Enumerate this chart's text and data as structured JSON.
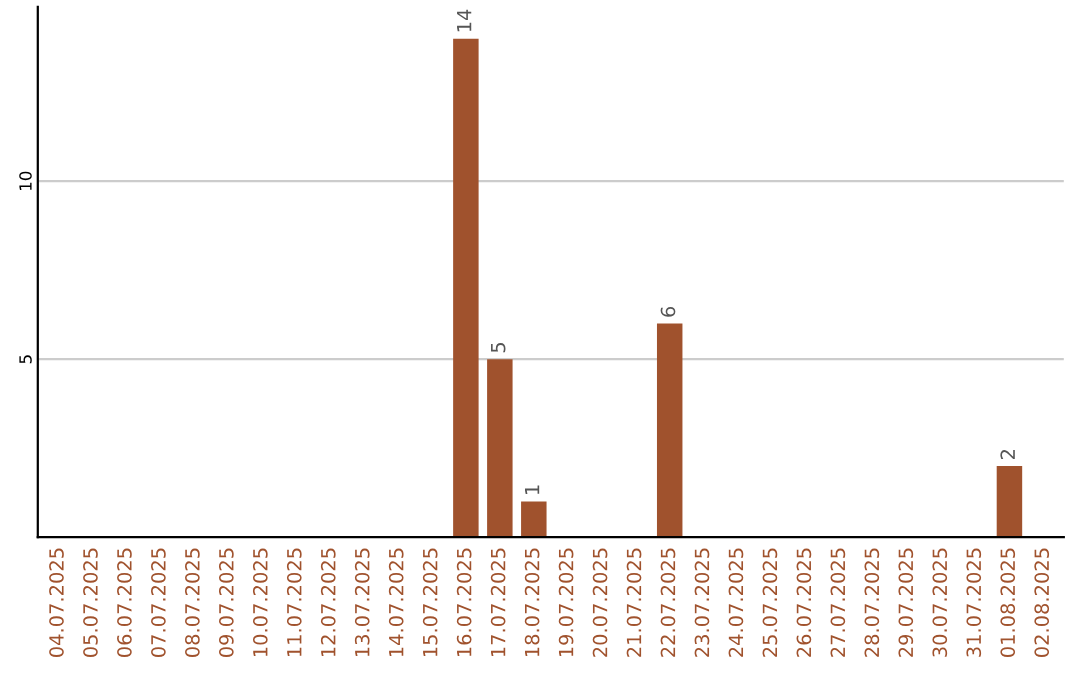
{
  "chart_data": {
    "type": "bar",
    "categories": [
      "04.07.2025",
      "05.07.2025",
      "06.07.2025",
      "07.07.2025",
      "08.07.2025",
      "09.07.2025",
      "10.07.2025",
      "11.07.2025",
      "12.07.2025",
      "13.07.2025",
      "14.07.2025",
      "15.07.2025",
      "16.07.2025",
      "17.07.2025",
      "18.07.2025",
      "19.07.2025",
      "20.07.2025",
      "21.07.2025",
      "22.07.2025",
      "23.07.2025",
      "24.07.2025",
      "25.07.2025",
      "26.07.2025",
      "27.07.2025",
      "28.07.2025",
      "29.07.2025",
      "30.07.2025",
      "31.07.2025",
      "01.08.2025",
      "02.08.2025"
    ],
    "values": [
      0,
      0,
      0,
      0,
      0,
      0,
      0,
      0,
      0,
      0,
      0,
      0,
      14,
      5,
      1,
      0,
      0,
      0,
      6,
      0,
      0,
      0,
      0,
      0,
      0,
      0,
      0,
      0,
      2,
      0
    ],
    "value_labels": [
      null,
      null,
      null,
      null,
      null,
      null,
      null,
      null,
      null,
      null,
      null,
      null,
      "14",
      "5",
      "1",
      null,
      null,
      null,
      "6",
      null,
      null,
      null,
      null,
      null,
      null,
      null,
      null,
      null,
      "2",
      null
    ],
    "color": "#a0522d",
    "ylim": [
      0,
      14.9
    ],
    "yticks": [
      5,
      10
    ],
    "grid": "y",
    "legend": false
  }
}
